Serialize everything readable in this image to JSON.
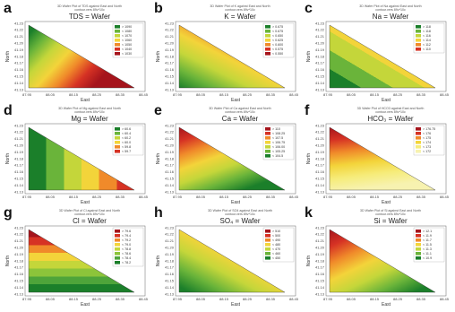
{
  "chart_data": [
    {
      "type": "contour",
      "letter": "a",
      "title": "TDS = Wafer",
      "subtitle": [
        "3D Wafer Plot of TDS against East and North",
        "contour.vers 89v*10c"
      ],
      "xlabel": "East",
      "ylabel": "North",
      "xticks": [
        "87.95",
        "88.05",
        "88.15",
        "88.25",
        "88.35",
        "88.45"
      ],
      "yticks": [
        "41.23",
        "41.22",
        "41.21",
        "41.20",
        "41.19",
        "41.18",
        "41.17",
        "41.16",
        "41.15",
        "41.14",
        "41.13"
      ],
      "legend": [
        "> 1090",
        "< 1080",
        "< 1070",
        "< 1060",
        "< 1050",
        "< 1040",
        "< 1030"
      ],
      "colors": [
        "#1b7f2a",
        "#6ab43a",
        "#c4d63a",
        "#f3d43a",
        "#f08a2a",
        "#d63224",
        "#a5141c"
      ],
      "gradient": [
        0.08,
        0.0,
        0.9,
        0.45
      ]
    },
    {
      "type": "contour",
      "letter": "b",
      "title": "K = Wafer",
      "subtitle": [
        "3D Wafer Plot of K against East and North",
        "contour.vers 89v*10c"
      ],
      "xlabel": "East",
      "ylabel": "North",
      "xticks": [
        "87.95",
        "88.05",
        "88.15",
        "88.25",
        "88.35",
        "88.45"
      ],
      "yticks": [
        "41.23",
        "41.22",
        "41.21",
        "41.20",
        "41.19",
        "41.18",
        "41.17",
        "41.16",
        "41.15",
        "41.14",
        "41.13"
      ],
      "legend": [
        "> 0.675",
        "< 0.675",
        "< 0.650",
        "< 0.625",
        "< 0.600",
        "< 0.575",
        "< 0.550"
      ],
      "colors": [
        "#1b7f2a",
        "#6ab43a",
        "#c4d63a",
        "#f3d43a",
        "#f08a2a",
        "#d63224",
        "#a5141c"
      ],
      "gradient": [
        0.0,
        1.0,
        0.85,
        0.0
      ]
    },
    {
      "type": "contour",
      "letter": "c",
      "title": "Na = Wafer",
      "subtitle": [
        "3D Wafer Plot of Na against East and North",
        "contour.vers 89v*10c"
      ],
      "xlabel": "East",
      "ylabel": "North",
      "xticks": [
        "87.95",
        "88.05",
        "88.15",
        "88.25",
        "88.35",
        "88.45"
      ],
      "yticks": [
        "41.23",
        "41.22",
        "41.21",
        "41.20",
        "41.19",
        "41.18",
        "41.17",
        "41.16",
        "41.15",
        "41.14",
        "41.13"
      ],
      "legend": [
        "> 118",
        "< 118",
        "< 116",
        "< 114",
        "< 112",
        "< 110"
      ],
      "colors": [
        "#1b7f2a",
        "#6ab43a",
        "#c4d63a",
        "#f3d43a",
        "#f08a2a",
        "#d63224"
      ],
      "gradient": [
        0.0,
        1.0,
        0.9,
        0.1
      ],
      "bands": true
    },
    {
      "type": "contour",
      "letter": "d",
      "title": "Mg = Wafer",
      "subtitle": [
        "3D Wafer Plot of Mg against East and North",
        "contour.vers 89v*10c"
      ],
      "xlabel": "East",
      "ylabel": "North",
      "xticks": [
        "87.95",
        "88.05",
        "88.15",
        "88.25",
        "88.35",
        "88.45"
      ],
      "yticks": [
        "41.23",
        "41.22",
        "41.21",
        "41.20",
        "41.19",
        "41.18",
        "41.17",
        "41.16",
        "41.15",
        "41.14",
        "41.13"
      ],
      "legend": [
        "> 60.6",
        "< 60.4",
        "< 60.2",
        "< 60.0",
        "< 59.8",
        "< 59.7"
      ],
      "colors": [
        "#1b7f2a",
        "#6ab43a",
        "#c4d63a",
        "#f3d43a",
        "#f08a2a",
        "#d63224"
      ],
      "gradient": [
        0.0,
        0.5,
        1.0,
        0.5
      ],
      "bands": true
    },
    {
      "type": "contour",
      "letter": "e",
      "title": "Ca = Wafer",
      "subtitle": [
        "3D Wafer Plot of Ca against East and North",
        "contour.vers 89v*10c"
      ],
      "xlabel": "East",
      "ylabel": "North",
      "xticks": [
        "87.95",
        "88.05",
        "88.15",
        "88.25",
        "88.35",
        "88.45"
      ],
      "yticks": [
        "41.23",
        "41.22",
        "41.21",
        "41.20",
        "41.19",
        "41.18",
        "41.17",
        "41.16",
        "41.15",
        "41.14",
        "41.13"
      ],
      "legend": [
        "> 110",
        "< 108.25",
        "< 107.5",
        "< 106.75",
        "< 106.00",
        "< 105.25",
        "< 104.5"
      ],
      "colors": [
        "#a5141c",
        "#d63224",
        "#f08a2a",
        "#f3d43a",
        "#c4d63a",
        "#6ab43a",
        "#1b7f2a"
      ],
      "gradient": [
        0.0,
        0.0,
        0.6,
        1.0
      ]
    },
    {
      "type": "contour",
      "letter": "f",
      "title": "HCO₃ = Wafer",
      "subtitle": [
        "3D Wafer Plot of HCO3 against East and North",
        "contour.vers 89v*10c"
      ],
      "xlabel": "East",
      "ylabel": "North",
      "xticks": [
        "87.95",
        "88.05",
        "88.15",
        "88.25",
        "88.35",
        "88.45"
      ],
      "yticks": [
        "41.23",
        "41.22",
        "41.21",
        "41.20",
        "41.19",
        "41.18",
        "41.17",
        "41.16",
        "41.15",
        "41.14",
        "41.13"
      ],
      "legend": [
        "> 176.75",
        "< 176",
        "< 175",
        "< 174",
        "< 173",
        "< 172"
      ],
      "colors": [
        "#a5141c",
        "#d63224",
        "#f08a2a",
        "#f3d43a",
        "#f6ec7a",
        "#f7f2b0"
      ],
      "gradient": [
        0.0,
        0.0,
        0.2,
        1.0
      ]
    },
    {
      "type": "contour",
      "letter": "g",
      "title": "Cl = Wafer",
      "subtitle": [
        "3D Wafer Plot of Cl against East and North",
        "contour.vers 89v*10c"
      ],
      "xlabel": "East",
      "ylabel": "North",
      "xticks": [
        "87.95",
        "88.05",
        "88.15",
        "88.25",
        "88.35",
        "88.45"
      ],
      "yticks": [
        "41.23",
        "41.22",
        "41.21",
        "41.20",
        "41.19",
        "41.18",
        "41.17",
        "41.16",
        "41.15",
        "41.14",
        "41.13"
      ],
      "legend": [
        "> 79.6",
        "< 79.4",
        "< 79.2",
        "< 79.0",
        "< 78.8",
        "< 78.6",
        "< 78.4",
        "< 78.2"
      ],
      "colors": [
        "#a5141c",
        "#d63224",
        "#f08a2a",
        "#f3d43a",
        "#c4d63a",
        "#8cc43a",
        "#4ea43a",
        "#1b7f2a"
      ],
      "gradient": [
        0.0,
        0.0,
        0.0,
        1.0
      ],
      "bands": true
    },
    {
      "type": "contour",
      "letter": "h",
      "title": "SO₄ = Wafer",
      "subtitle": [
        "3D Wafer Plot of SO4 against East and North",
        "contour.vers 89v*10c"
      ],
      "xlabel": "East",
      "ylabel": "North",
      "xticks": [
        "87.95",
        "88.05",
        "88.15",
        "88.25",
        "88.35",
        "88.45"
      ],
      "yticks": [
        "41.23",
        "41.22",
        "41.21",
        "41.20",
        "41.19",
        "41.18",
        "41.17",
        "41.16",
        "41.15",
        "41.14",
        "41.13"
      ],
      "legend": [
        "> 510",
        "< 500",
        "< 490",
        "< 480",
        "< 470",
        "< 460",
        "< 450"
      ],
      "colors": [
        "#a5141c",
        "#d63224",
        "#f08a2a",
        "#f3d43a",
        "#c4d63a",
        "#6ab43a",
        "#1b7f2a"
      ],
      "gradient": [
        1.0,
        0.0,
        0.1,
        1.0
      ]
    },
    {
      "type": "contour",
      "letter": "k",
      "title": "Si = Wafer",
      "subtitle": [
        "3D Wafer Plot of Si against East and North",
        "contour.vers 89v*10c"
      ],
      "xlabel": "East",
      "ylabel": "North",
      "xticks": [
        "87.95",
        "88.05",
        "88.15",
        "88.25",
        "88.35",
        "88.45"
      ],
      "yticks": [
        "41.23",
        "41.22",
        "41.21",
        "41.20",
        "41.19",
        "41.18",
        "41.17",
        "41.16",
        "41.15",
        "41.14",
        "41.13"
      ],
      "legend": [
        "> 12.1",
        "< 11.9",
        "< 11.7",
        "< 11.5",
        "< 11.3",
        "< 11.1",
        "< 10.9"
      ],
      "colors": [
        "#a5141c",
        "#d63224",
        "#f08a2a",
        "#f3d43a",
        "#c4d63a",
        "#6ab43a",
        "#1b7f2a"
      ],
      "gradient": [
        0.0,
        0.0,
        0.8,
        1.0
      ]
    }
  ]
}
